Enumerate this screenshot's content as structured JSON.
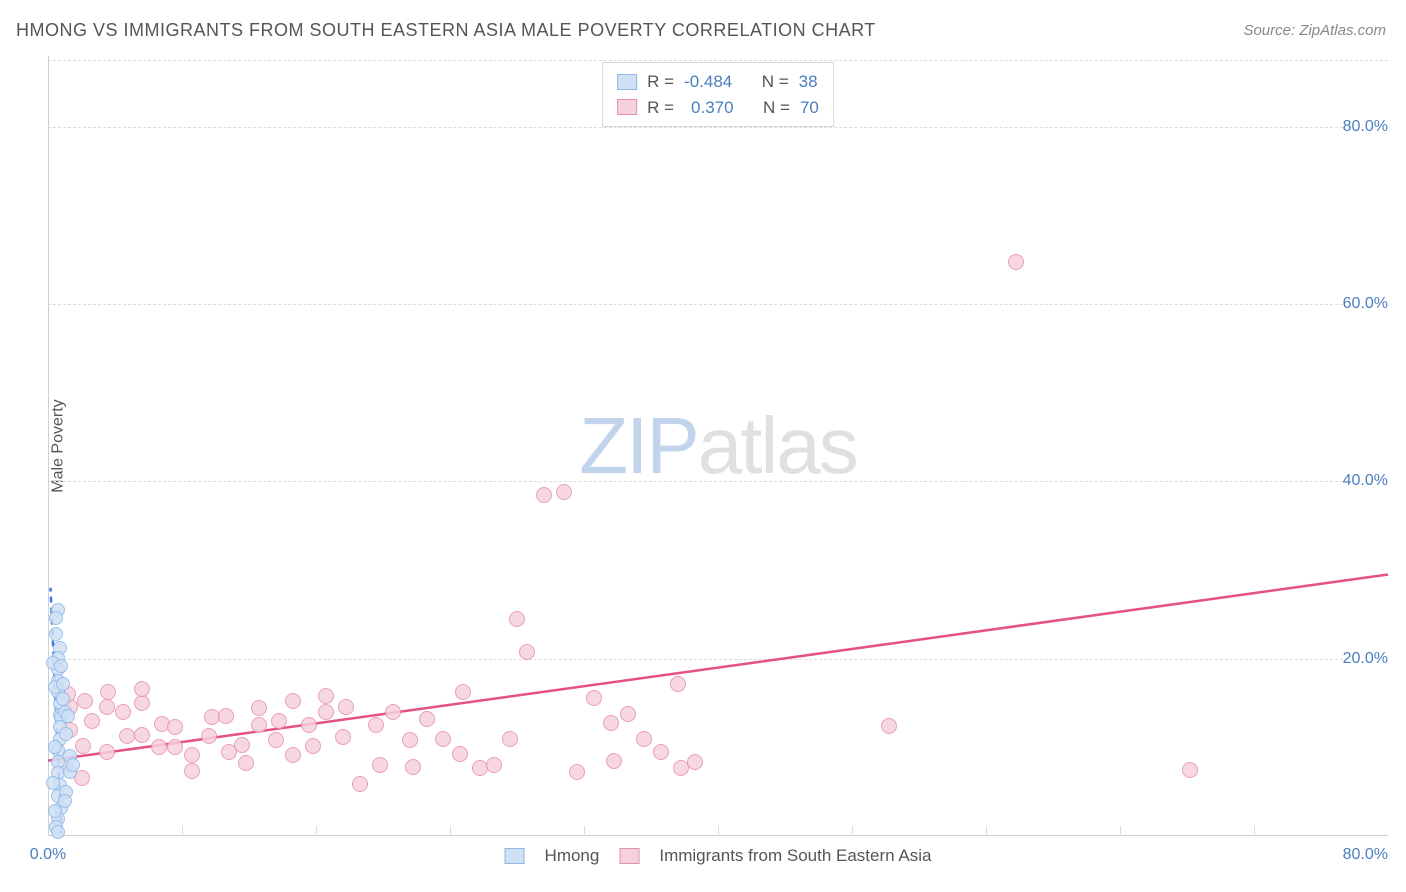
{
  "title": "HMONG VS IMMIGRANTS FROM SOUTH EASTERN ASIA MALE POVERTY CORRELATION CHART",
  "source": "Source: ZipAtlas.com",
  "ylabel": "Male Poverty",
  "watermark": {
    "zip": "ZIP",
    "atlas": "atlas"
  },
  "chart": {
    "type": "scatter",
    "xlim": [
      0,
      80
    ],
    "ylim": [
      0,
      88
    ],
    "label_color": "#4a7ebf",
    "grid_color": "#dcdcdc",
    "yticks": [
      {
        "v": 20,
        "label": "20.0%"
      },
      {
        "v": 40,
        "label": "40.0%"
      },
      {
        "v": 60,
        "label": "60.0%"
      },
      {
        "v": 80,
        "label": "80.0%"
      }
    ],
    "xtick_left": {
      "v": 0,
      "label": "0.0%"
    },
    "xtick_right": {
      "v": 80,
      "label": "80.0%"
    },
    "xtick_positions": [
      8,
      16,
      24,
      32,
      40,
      48,
      56,
      64,
      72
    ],
    "bottom_axis_y0": 0
  },
  "series": {
    "hmong": {
      "label": "Hmong",
      "fill": "#cfe0f5",
      "stroke": "#8fb8e8",
      "line_color": "#357ae8",
      "marker_radius": 7,
      "R": "-0.484",
      "N": "38",
      "trend": {
        "x1": 0.8,
        "y1": 0.3,
        "x2": 0.15,
        "y2": 28,
        "dashed": true
      },
      "points": [
        [
          0.6,
          25.5
        ],
        [
          0.5,
          24.6
        ],
        [
          0.7,
          21.2
        ],
        [
          0.6,
          20.1
        ],
        [
          0.6,
          18.8
        ],
        [
          0.6,
          17.5
        ],
        [
          0.6,
          16.2
        ],
        [
          0.7,
          14.9
        ],
        [
          0.7,
          13.6
        ],
        [
          0.8,
          13.3
        ],
        [
          0.7,
          12.3
        ],
        [
          0.7,
          11.0
        ],
        [
          0.6,
          9.7
        ],
        [
          0.6,
          8.4
        ],
        [
          0.6,
          7.1
        ],
        [
          0.7,
          5.8
        ],
        [
          0.6,
          4.5
        ],
        [
          0.8,
          3.2
        ],
        [
          0.6,
          1.9
        ],
        [
          0.5,
          1.0
        ],
        [
          0.6,
          0.5
        ],
        [
          1.1,
          11.5
        ],
        [
          1.3,
          9.0
        ],
        [
          1.3,
          7.2
        ],
        [
          1.1,
          5.0
        ],
        [
          1.5,
          8.0
        ],
        [
          1.0,
          14.0
        ],
        [
          0.4,
          16.8
        ],
        [
          0.4,
          10.0
        ],
        [
          0.3,
          6.0
        ],
        [
          0.9,
          17.2
        ],
        [
          0.9,
          15.5
        ],
        [
          1.2,
          13.5
        ],
        [
          1.0,
          4.0
        ],
        [
          0.4,
          2.8
        ],
        [
          0.3,
          19.5
        ],
        [
          0.5,
          22.8
        ],
        [
          0.8,
          19.2
        ]
      ]
    },
    "sea": {
      "label": "Immigrants from South Eastern Asia",
      "fill": "#f5d1dd",
      "stroke": "#e690ab",
      "line_color": "#e65088",
      "marker_radius": 8,
      "R": "0.370",
      "N": "70",
      "trend": {
        "x1": 0,
        "y1": 8.5,
        "x2": 80,
        "y2": 29.5,
        "dashed": false
      },
      "points": [
        [
          1.3,
          14.5
        ],
        [
          1.2,
          16.0
        ],
        [
          1.3,
          12.0
        ],
        [
          2.2,
          15.2
        ],
        [
          2.1,
          10.2
        ],
        [
          2.6,
          13.0
        ],
        [
          3.5,
          14.6
        ],
        [
          3.6,
          16.2
        ],
        [
          3.5,
          9.5
        ],
        [
          4.5,
          14.0
        ],
        [
          4.7,
          11.3
        ],
        [
          5.6,
          15.0
        ],
        [
          5.6,
          16.6
        ],
        [
          5.6,
          11.4
        ],
        [
          6.6,
          10.0
        ],
        [
          6.8,
          12.6
        ],
        [
          7.6,
          12.3
        ],
        [
          7.6,
          10.0
        ],
        [
          8.6,
          9.1
        ],
        [
          8.6,
          7.3
        ],
        [
          9.6,
          11.3
        ],
        [
          9.8,
          13.4
        ],
        [
          10.6,
          13.5
        ],
        [
          10.8,
          9.5
        ],
        [
          11.6,
          10.3
        ],
        [
          11.8,
          8.2
        ],
        [
          12.6,
          12.5
        ],
        [
          12.6,
          14.4
        ],
        [
          13.6,
          10.8
        ],
        [
          13.8,
          13.0
        ],
        [
          14.6,
          9.1
        ],
        [
          14.6,
          15.2
        ],
        [
          15.6,
          12.5
        ],
        [
          15.8,
          10.2
        ],
        [
          16.6,
          14.0
        ],
        [
          16.6,
          15.8
        ],
        [
          17.6,
          11.2
        ],
        [
          17.8,
          14.5
        ],
        [
          18.6,
          5.9
        ],
        [
          19.6,
          12.5
        ],
        [
          19.8,
          8.0
        ],
        [
          20.6,
          14.0
        ],
        [
          21.6,
          10.8
        ],
        [
          21.8,
          7.8
        ],
        [
          22.6,
          13.2
        ],
        [
          23.6,
          11.0
        ],
        [
          24.6,
          9.3
        ],
        [
          24.8,
          16.2
        ],
        [
          25.8,
          7.7
        ],
        [
          26.6,
          8.0
        ],
        [
          27.6,
          11.0
        ],
        [
          28.0,
          24.5
        ],
        [
          28.6,
          20.8
        ],
        [
          29.6,
          38.5
        ],
        [
          30.8,
          38.8
        ],
        [
          31.6,
          7.2
        ],
        [
          32.6,
          15.6
        ],
        [
          33.6,
          12.8
        ],
        [
          33.8,
          8.5
        ],
        [
          34.6,
          13.8
        ],
        [
          35.6,
          11.0
        ],
        [
          36.6,
          9.5
        ],
        [
          37.6,
          17.2
        ],
        [
          37.8,
          7.7
        ],
        [
          38.6,
          8.3
        ],
        [
          50.2,
          12.4
        ],
        [
          57.8,
          64.8
        ],
        [
          68.2,
          7.5
        ],
        [
          1.0,
          8.0
        ],
        [
          2.0,
          6.6
        ]
      ]
    }
  }
}
